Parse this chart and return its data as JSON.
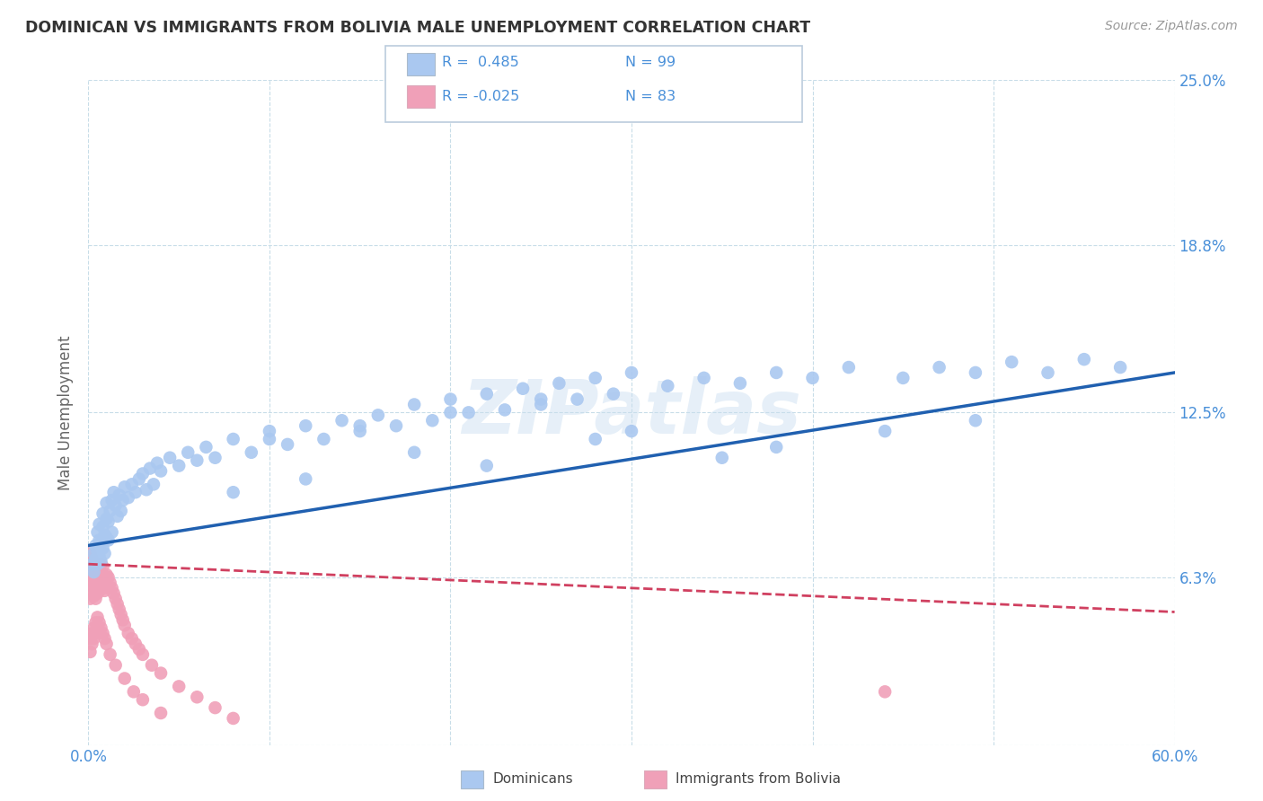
{
  "title": "DOMINICAN VS IMMIGRANTS FROM BOLIVIA MALE UNEMPLOYMENT CORRELATION CHART",
  "source": "Source: ZipAtlas.com",
  "ylabel": "Male Unemployment",
  "x_min": 0.0,
  "x_max": 0.6,
  "y_min": 0.0,
  "y_max": 0.25,
  "x_ticks": [
    0.0,
    0.1,
    0.2,
    0.3,
    0.4,
    0.5,
    0.6
  ],
  "x_tick_labels": [
    "0.0%",
    "",
    "",
    "",
    "",
    "",
    "60.0%"
  ],
  "y_ticks": [
    0.0,
    0.063,
    0.125,
    0.188,
    0.25
  ],
  "y_tick_labels": [
    "",
    "6.3%",
    "12.5%",
    "18.8%",
    "25.0%"
  ],
  "dominican_R": 0.485,
  "dominican_N": 99,
  "bolivia_R": -0.025,
  "bolivia_N": 83,
  "dominican_color": "#aac8f0",
  "dominican_line_color": "#2060b0",
  "bolivia_color": "#f0a0b8",
  "bolivia_line_color": "#d04060",
  "watermark": "ZIPatlas",
  "dominican_x": [
    0.002,
    0.003,
    0.003,
    0.004,
    0.004,
    0.005,
    0.005,
    0.005,
    0.006,
    0.006,
    0.006,
    0.007,
    0.007,
    0.008,
    0.008,
    0.008,
    0.009,
    0.009,
    0.01,
    0.01,
    0.01,
    0.011,
    0.011,
    0.012,
    0.013,
    0.013,
    0.014,
    0.015,
    0.016,
    0.017,
    0.018,
    0.019,
    0.02,
    0.022,
    0.024,
    0.026,
    0.028,
    0.03,
    0.032,
    0.034,
    0.036,
    0.038,
    0.04,
    0.045,
    0.05,
    0.055,
    0.06,
    0.065,
    0.07,
    0.08,
    0.09,
    0.1,
    0.11,
    0.12,
    0.13,
    0.14,
    0.15,
    0.16,
    0.17,
    0.18,
    0.19,
    0.2,
    0.21,
    0.22,
    0.23,
    0.24,
    0.25,
    0.26,
    0.27,
    0.28,
    0.29,
    0.3,
    0.32,
    0.34,
    0.36,
    0.38,
    0.4,
    0.42,
    0.45,
    0.47,
    0.49,
    0.51,
    0.53,
    0.55,
    0.57,
    0.1,
    0.15,
    0.2,
    0.25,
    0.3,
    0.08,
    0.12,
    0.18,
    0.22,
    0.28,
    0.35,
    0.38,
    0.44,
    0.49
  ],
  "dominican_y": [
    0.068,
    0.072,
    0.065,
    0.075,
    0.07,
    0.08,
    0.073,
    0.068,
    0.077,
    0.071,
    0.083,
    0.076,
    0.069,
    0.082,
    0.074,
    0.087,
    0.079,
    0.072,
    0.085,
    0.078,
    0.091,
    0.084,
    0.077,
    0.088,
    0.092,
    0.08,
    0.095,
    0.09,
    0.086,
    0.094,
    0.088,
    0.092,
    0.097,
    0.093,
    0.098,
    0.095,
    0.1,
    0.102,
    0.096,
    0.104,
    0.098,
    0.106,
    0.103,
    0.108,
    0.105,
    0.11,
    0.107,
    0.112,
    0.108,
    0.115,
    0.11,
    0.118,
    0.113,
    0.12,
    0.115,
    0.122,
    0.118,
    0.124,
    0.12,
    0.128,
    0.122,
    0.13,
    0.125,
    0.132,
    0.126,
    0.134,
    0.128,
    0.136,
    0.13,
    0.138,
    0.132,
    0.14,
    0.135,
    0.138,
    0.136,
    0.14,
    0.138,
    0.142,
    0.138,
    0.142,
    0.14,
    0.144,
    0.14,
    0.145,
    0.142,
    0.115,
    0.12,
    0.125,
    0.13,
    0.118,
    0.095,
    0.1,
    0.11,
    0.105,
    0.115,
    0.108,
    0.112,
    0.118,
    0.122
  ],
  "bolivia_x": [
    0.001,
    0.001,
    0.001,
    0.001,
    0.001,
    0.002,
    0.002,
    0.002,
    0.002,
    0.002,
    0.002,
    0.003,
    0.003,
    0.003,
    0.003,
    0.003,
    0.003,
    0.004,
    0.004,
    0.004,
    0.004,
    0.004,
    0.005,
    0.005,
    0.005,
    0.005,
    0.006,
    0.006,
    0.006,
    0.007,
    0.007,
    0.007,
    0.008,
    0.008,
    0.008,
    0.009,
    0.009,
    0.01,
    0.01,
    0.011,
    0.011,
    0.012,
    0.013,
    0.014,
    0.015,
    0.016,
    0.017,
    0.018,
    0.019,
    0.02,
    0.022,
    0.024,
    0.026,
    0.028,
    0.03,
    0.035,
    0.04,
    0.05,
    0.06,
    0.07,
    0.08,
    0.001,
    0.001,
    0.002,
    0.002,
    0.003,
    0.003,
    0.004,
    0.004,
    0.005,
    0.005,
    0.006,
    0.007,
    0.008,
    0.009,
    0.01,
    0.012,
    0.015,
    0.02,
    0.025,
    0.03,
    0.04,
    0.44
  ],
  "bolivia_y": [
    0.055,
    0.06,
    0.065,
    0.068,
    0.072,
    0.062,
    0.066,
    0.07,
    0.058,
    0.064,
    0.068,
    0.06,
    0.064,
    0.068,
    0.056,
    0.062,
    0.066,
    0.058,
    0.062,
    0.066,
    0.055,
    0.06,
    0.057,
    0.061,
    0.065,
    0.059,
    0.058,
    0.062,
    0.066,
    0.06,
    0.064,
    0.068,
    0.059,
    0.063,
    0.067,
    0.058,
    0.062,
    0.06,
    0.064,
    0.059,
    0.063,
    0.061,
    0.059,
    0.057,
    0.055,
    0.053,
    0.051,
    0.049,
    0.047,
    0.045,
    0.042,
    0.04,
    0.038,
    0.036,
    0.034,
    0.03,
    0.027,
    0.022,
    0.018,
    0.014,
    0.01,
    0.035,
    0.04,
    0.038,
    0.042,
    0.04,
    0.044,
    0.042,
    0.046,
    0.044,
    0.048,
    0.046,
    0.044,
    0.042,
    0.04,
    0.038,
    0.034,
    0.03,
    0.025,
    0.02,
    0.017,
    0.012,
    0.02
  ]
}
